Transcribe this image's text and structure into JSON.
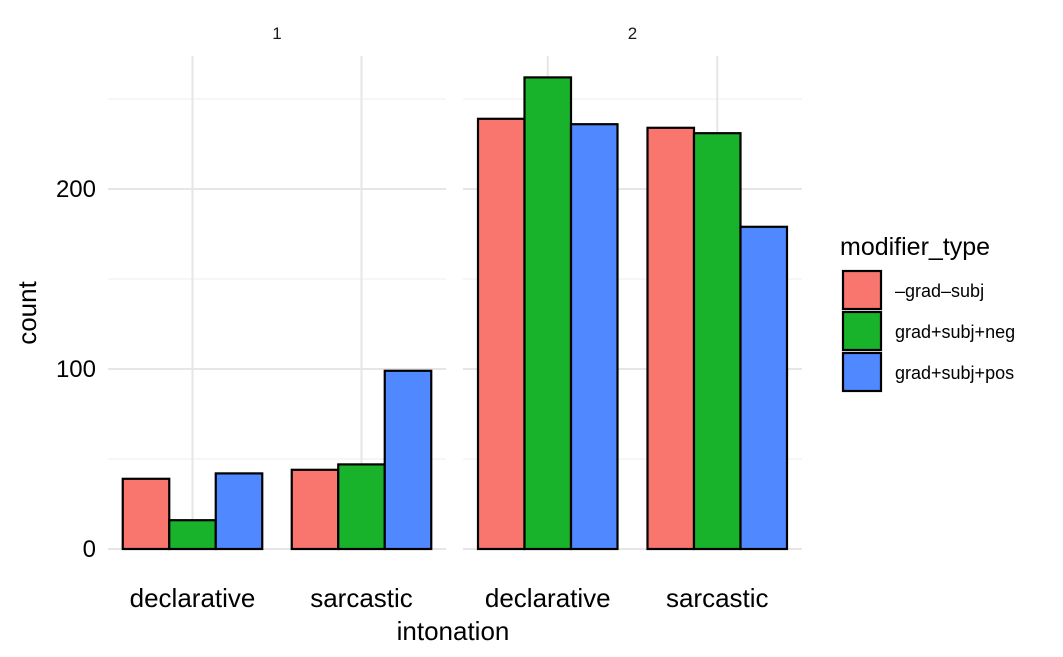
{
  "chart_data": {
    "type": "bar",
    "facet_by": "panel",
    "panels": [
      {
        "label": "1",
        "categories": [
          "declarative",
          "sarcastic"
        ],
        "series": [
          {
            "name": "–grad–subj",
            "values": [
              39,
              44
            ]
          },
          {
            "name": "grad+subj+neg",
            "values": [
              16,
              47
            ]
          },
          {
            "name": "grad+subj+pos",
            "values": [
              42,
              99
            ]
          }
        ]
      },
      {
        "label": "2",
        "categories": [
          "declarative",
          "sarcastic"
        ],
        "series": [
          {
            "name": "–grad–subj",
            "values": [
              239,
              234
            ]
          },
          {
            "name": "grad+subj+neg",
            "values": [
              262,
              231
            ]
          },
          {
            "name": "grad+subj+pos",
            "values": [
              236,
              179
            ]
          }
        ]
      }
    ],
    "xlabel": "intonation",
    "ylabel": "count",
    "ylim": [
      0,
      270
    ],
    "yticks": [
      0,
      100,
      200
    ],
    "grid": true,
    "legend": {
      "title": "modifier_type",
      "placement": "right",
      "entries": [
        "–grad–subj",
        "grad+subj+neg",
        "grad+subj+pos"
      ]
    },
    "colors": [
      "#f8766d",
      "#19b32b",
      "#4f88ff"
    ]
  }
}
